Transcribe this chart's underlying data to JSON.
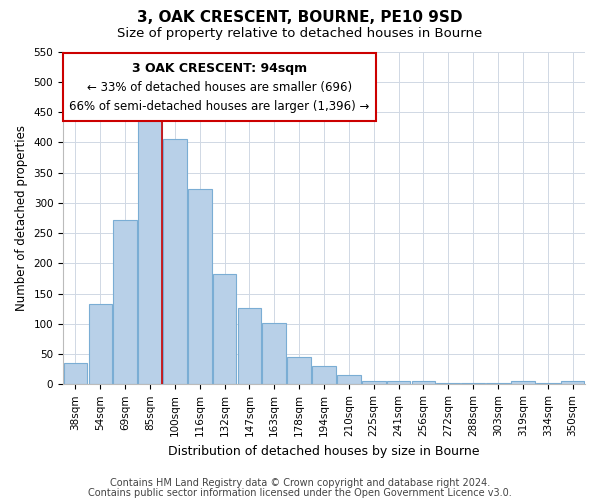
{
  "title": "3, OAK CRESCENT, BOURNE, PE10 9SD",
  "subtitle": "Size of property relative to detached houses in Bourne",
  "xlabel": "Distribution of detached houses by size in Bourne",
  "ylabel": "Number of detached properties",
  "bar_labels": [
    "38sqm",
    "54sqm",
    "69sqm",
    "85sqm",
    "100sqm",
    "116sqm",
    "132sqm",
    "147sqm",
    "163sqm",
    "178sqm",
    "194sqm",
    "210sqm",
    "225sqm",
    "241sqm",
    "256sqm",
    "272sqm",
    "288sqm",
    "303sqm",
    "319sqm",
    "334sqm",
    "350sqm"
  ],
  "bar_values": [
    35,
    133,
    272,
    435,
    405,
    322,
    183,
    126,
    102,
    45,
    30,
    16,
    6,
    5,
    5,
    3,
    3,
    3,
    5,
    3,
    5
  ],
  "bar_color": "#b8d0e8",
  "bar_edge_color": "#7aadd4",
  "annotation_title": "3 OAK CRESCENT: 94sqm",
  "annotation_line1": "← 33% of detached houses are smaller (696)",
  "annotation_line2": "66% of semi-detached houses are larger (1,396) →",
  "annotation_box_color": "#ffffff",
  "annotation_box_edge_color": "#cc0000",
  "property_line_color": "#cc0000",
  "property_line_x": 3.5,
  "ylim": [
    0,
    550
  ],
  "yticks": [
    0,
    50,
    100,
    150,
    200,
    250,
    300,
    350,
    400,
    450,
    500,
    550
  ],
  "footer1": "Contains HM Land Registry data © Crown copyright and database right 2024.",
  "footer2": "Contains public sector information licensed under the Open Government Licence v3.0.",
  "bg_color": "#ffffff",
  "grid_color": "#d0d8e4",
  "title_fontsize": 11,
  "subtitle_fontsize": 9.5,
  "xlabel_fontsize": 9,
  "ylabel_fontsize": 8.5,
  "tick_fontsize": 7.5,
  "annotation_title_fontsize": 9,
  "annotation_body_fontsize": 8.5,
  "footer_fontsize": 7
}
